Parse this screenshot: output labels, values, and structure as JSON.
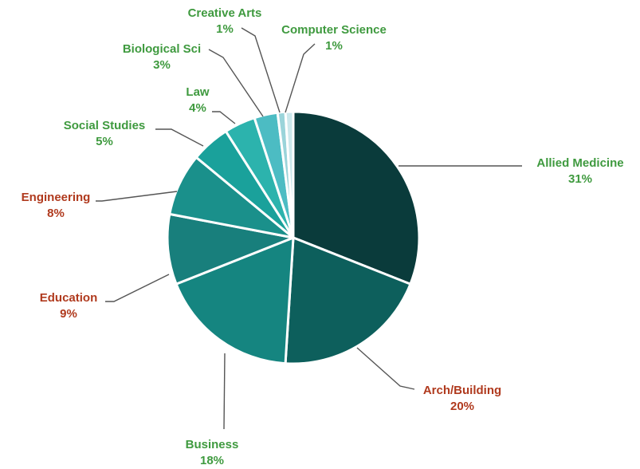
{
  "chart_data": {
    "type": "pie",
    "title": "",
    "slices": [
      {
        "label": "Allied Medicine",
        "value": 31,
        "value_label": "31%",
        "color": "#0a3b3b",
        "label_color": "#3f9a3f"
      },
      {
        "label": "Arch/Building",
        "value": 20,
        "value_label": "20%",
        "color": "#0d5f5c",
        "label_color": "#b03a1e"
      },
      {
        "label": "Business",
        "value": 18,
        "value_label": "18%",
        "color": "#158580",
        "label_color": "#3f9a3f"
      },
      {
        "label": "Education",
        "value": 9,
        "value_label": "9%",
        "color": "#187f7c",
        "label_color": "#b03a1e"
      },
      {
        "label": "Engineering",
        "value": 8,
        "value_label": "8%",
        "color": "#1a908b",
        "label_color": "#b03a1e"
      },
      {
        "label": "Social Studies",
        "value": 5,
        "value_label": "5%",
        "color": "#1aa19b",
        "label_color": "#3f9a3f"
      },
      {
        "label": "Law",
        "value": 4,
        "value_label": "4%",
        "color": "#2cb3ad",
        "label_color": "#3f9a3f"
      },
      {
        "label": "Biological Sci",
        "value": 3,
        "value_label": "3%",
        "color": "#4cbcc3",
        "label_color": "#3f9a3f"
      },
      {
        "label": "Creative Arts",
        "value": 1,
        "value_label": "1%",
        "color": "#9ad4da",
        "label_color": "#3f9a3f"
      },
      {
        "label": "Computer Science",
        "value": 1,
        "value_label": "1%",
        "color": "#cbe8ec",
        "label_color": "#3f9a3f"
      }
    ]
  }
}
